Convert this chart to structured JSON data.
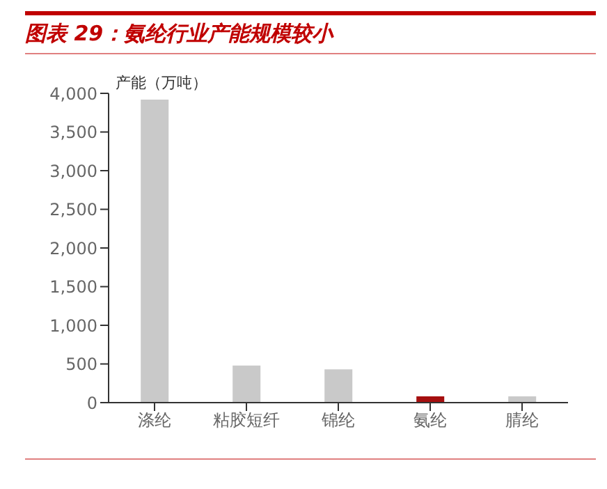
{
  "chart_data": {
    "type": "bar",
    "title": "图表 29：氨纶行业产能规模较小",
    "ylabel": "产能（万吨）",
    "categories": [
      "涤纶",
      "粘胶短纤",
      "锦纶",
      "氨纶",
      "腈纶"
    ],
    "values": [
      3920,
      480,
      430,
      80,
      80
    ],
    "colors": [
      "#c9c9c9",
      "#c9c9c9",
      "#c9c9c9",
      "#a50f0f",
      "#c9c9c9"
    ],
    "ylim": [
      0,
      4000
    ],
    "yticks": [
      0,
      500,
      {
        "value": 1000,
        "label": "1,000"
      },
      {
        "value": 1500,
        "label": "1,500"
      },
      {
        "value": 2000,
        "label": "2,000"
      },
      {
        "value": 2500,
        "label": "2,500"
      },
      {
        "value": 3000,
        "label": "3,000"
      },
      {
        "value": 3500,
        "label": "3,500"
      },
      {
        "value": 4000,
        "label": "4,000"
      }
    ],
    "grid": false,
    "legend": false
  }
}
